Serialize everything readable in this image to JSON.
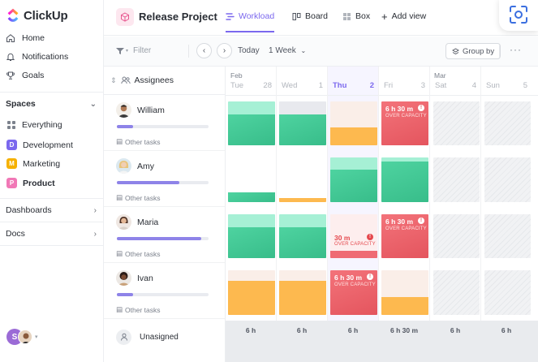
{
  "app": {
    "name": "ClickUp"
  },
  "sidebar": {
    "nav": [
      {
        "label": "Home",
        "icon": "home-icon"
      },
      {
        "label": "Notifications",
        "icon": "bell-icon"
      },
      {
        "label": "Goals",
        "icon": "trophy-icon"
      }
    ],
    "spaces_label": "Spaces",
    "everything_label": "Everything",
    "spaces": [
      {
        "badge": "D",
        "label": "Development",
        "color": "#7b68ee"
      },
      {
        "badge": "M",
        "label": "Marketing",
        "color": "#f6b100"
      },
      {
        "badge": "P",
        "label": "Product",
        "color": "#f178b6"
      }
    ],
    "dashboards_label": "Dashboards",
    "docs_label": "Docs",
    "user_initial": "S"
  },
  "header": {
    "project_title": "Release Project",
    "views": [
      {
        "label": "Workload",
        "icon": "workload-icon",
        "active": true
      },
      {
        "label": "Board",
        "icon": "board-icon",
        "active": false
      },
      {
        "label": "Box",
        "icon": "box-icon",
        "active": false
      }
    ],
    "add_view_label": "Add view"
  },
  "toolbar": {
    "filter_placeholder": "Filter",
    "today_label": "Today",
    "range_label": "1 Week",
    "group_by_label": "Group by"
  },
  "workload": {
    "column_label": "Assignees",
    "months": [
      {
        "label": "Feb"
      },
      {
        "label": "Mar"
      }
    ],
    "days": [
      {
        "name": "Tue",
        "num": "28"
      },
      {
        "name": "Wed",
        "num": "1"
      },
      {
        "name": "Thu",
        "num": "2",
        "today": true
      },
      {
        "name": "Fri",
        "num": "3"
      },
      {
        "name": "Sat",
        "num": "4"
      },
      {
        "name": "Sun",
        "num": "5"
      }
    ],
    "other_tasks_label": "Other tasks",
    "over_capacity_label": "OVER CAPACITY",
    "assignees": [
      {
        "name": "William",
        "workload": 0.18
      },
      {
        "name": "Amy",
        "workload": 0.68
      },
      {
        "name": "Maria",
        "workload": 0.92
      },
      {
        "name": "Ivan",
        "workload": 0.18
      }
    ],
    "capacity_labels": {
      "william_fri": "6 h 30 m",
      "maria_thu": "30 m",
      "maria_fri": "6 h 30 m",
      "ivan_thu": "6 h 30 m"
    },
    "unassigned_label": "Unasigned",
    "totals": [
      "6 h",
      "6 h",
      "6 h",
      "6 h  30 m",
      "6 h",
      "6 h"
    ]
  },
  "colors": {
    "accent": "#7b68ee",
    "green": "#3ec898",
    "orange": "#fdb94f",
    "red": "#ef6b73"
  }
}
